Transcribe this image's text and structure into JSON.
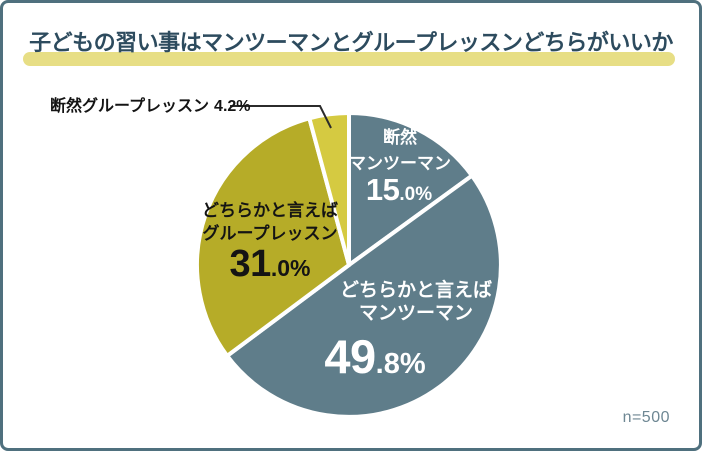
{
  "header": {
    "title": "子どもの習い事はマンツーマンとグループレッスンどちらがいいか"
  },
  "footer": {
    "sample_note": "n=500"
  },
  "theme": {
    "frame_border": "#4f707e",
    "title_text": "#2d4b5e",
    "title_highlight": "#e7de85",
    "man_to_man_color": "#5f7d8a",
    "group_lean_color": "#b6ac28",
    "group_strong_color": "#d5ca41",
    "separator_color": "#ffffff",
    "note_text": "#6e8793"
  },
  "chart_data": {
    "type": "pie",
    "title": "子どもの習い事はマンツーマンとグループレッスンどちらがいいか",
    "sample_size": "n=500",
    "unit": "%",
    "start_angle": "top",
    "direction": "clockwise",
    "legend_position": "labels-on-slices",
    "slices": [
      {
        "key": "strong-man-to-man",
        "label": "断然マンツーマン",
        "label_lines": [
          "断然",
          "マンツーマン"
        ],
        "value": 15.0,
        "pct_int": "15",
        "pct_rest": ".0%",
        "color": "#5f7d8a",
        "text_color": "#ffffff"
      },
      {
        "key": "lean-man-to-man",
        "label": "どちらかと言えばマンツーマン",
        "label_lines": [
          "どちらかと言えば",
          "マンツーマン"
        ],
        "value": 49.8,
        "pct_int": "49",
        "pct_rest": ".8%",
        "color": "#5f7d8a",
        "text_color": "#ffffff"
      },
      {
        "key": "lean-group-lesson",
        "label": "どちらかと言えばグループレッスン",
        "label_lines": [
          "どちらかと言えば",
          "グループレッスン"
        ],
        "value": 31.0,
        "pct_int": "31",
        "pct_rest": ".0%",
        "color": "#b6ac28",
        "text_color": "#141414"
      },
      {
        "key": "strong-group-lesson",
        "label": "断然グループレッスン",
        "value": 4.2,
        "pct_text": "4.2%",
        "color": "#d5ca41",
        "text_color": "#141414",
        "callout": true
      }
    ]
  }
}
